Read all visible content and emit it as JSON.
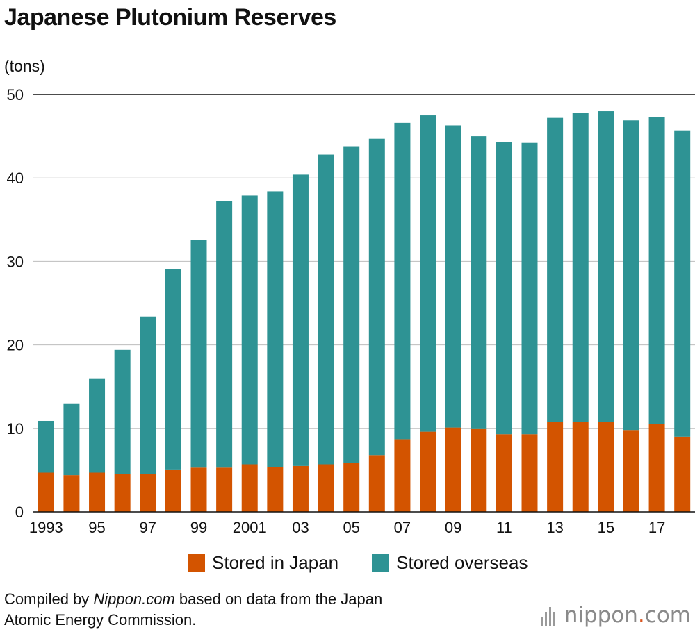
{
  "chart_data": {
    "type": "bar",
    "stacked": true,
    "title": "Japanese Plutonium Reserves",
    "ylabel": "(tons)",
    "xlabel": "",
    "ylim": [
      0,
      50
    ],
    "yticks": [
      0,
      10,
      20,
      30,
      40,
      50
    ],
    "categories": [
      "1993",
      "1994",
      "1995",
      "1996",
      "1997",
      "1998",
      "1999",
      "2000",
      "2001",
      "2002",
      "2003",
      "2004",
      "2005",
      "2006",
      "2007",
      "2008",
      "2009",
      "2010",
      "2011",
      "2012",
      "2013",
      "2014",
      "2015",
      "2016",
      "2017",
      "2018"
    ],
    "xtick_labels": [
      "1993",
      "",
      "95",
      "",
      "97",
      "",
      "99",
      "",
      "2001",
      "",
      "03",
      "",
      "05",
      "",
      "07",
      "",
      "09",
      "",
      "11",
      "",
      "13",
      "",
      "15",
      "",
      "17",
      ""
    ],
    "series": [
      {
        "name": "Stored in Japan",
        "color": "#d35400",
        "values": [
          4.7,
          4.4,
          4.7,
          4.5,
          4.5,
          5.0,
          5.3,
          5.3,
          5.7,
          5.4,
          5.5,
          5.7,
          5.9,
          6.8,
          8.7,
          9.6,
          10.1,
          10.0,
          9.3,
          9.3,
          10.8,
          10.8,
          10.8,
          9.8,
          10.5,
          9.0
        ]
      },
      {
        "name": "Stored overseas",
        "color": "#2e9394",
        "values": [
          6.2,
          8.6,
          11.3,
          14.9,
          18.9,
          24.1,
          27.3,
          31.9,
          32.2,
          33.0,
          34.9,
          37.1,
          37.9,
          37.9,
          37.9,
          37.9,
          36.2,
          35.0,
          35.0,
          34.9,
          36.4,
          37.0,
          37.2,
          37.1,
          36.8,
          36.7
        ]
      }
    ]
  },
  "source": {
    "prefix": "Compiled by ",
    "name": "Nippon.com",
    "suffix": " based on data from the Japan",
    "line2": "Atomic Energy Commission."
  },
  "logo": {
    "main": "nippon",
    "dot": ".",
    "tld": "com"
  }
}
